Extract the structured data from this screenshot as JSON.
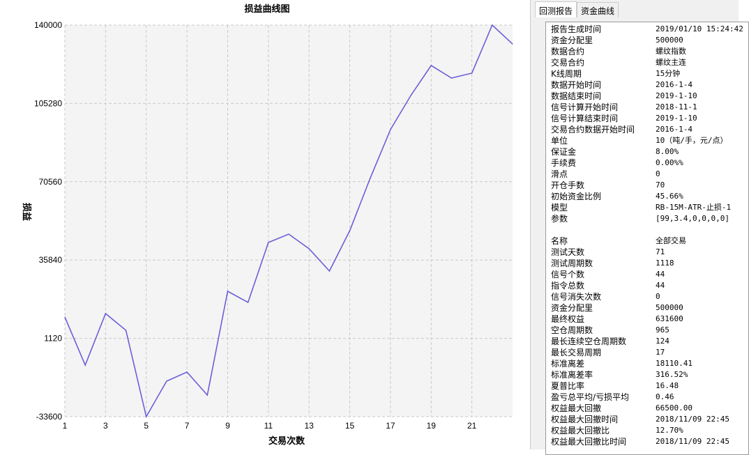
{
  "chart_data": {
    "type": "line",
    "title": "损益曲线图",
    "xlabel": "交易次数",
    "ylabel": "损益",
    "xlim": [
      1,
      23
    ],
    "ylim": [
      -33600,
      140000
    ],
    "xticks": [
      1,
      3,
      5,
      7,
      9,
      11,
      13,
      15,
      17,
      19,
      21
    ],
    "yticks": [
      140000,
      105280,
      70560,
      35840,
      1120,
      -33600
    ],
    "grid": true,
    "line_color": "#6a5fd8",
    "plot_bg": "#f4f4f4",
    "x": [
      1,
      2,
      3,
      4,
      5,
      6,
      7,
      8,
      9,
      10,
      11,
      12,
      13,
      14,
      15,
      16,
      17,
      18,
      19,
      20,
      21,
      22,
      23
    ],
    "y": [
      10570,
      -10740,
      12120,
      4700,
      -33600,
      -17850,
      -13830,
      -24030,
      22000,
      17060,
      43620,
      47330,
      40840,
      30960,
      48870,
      72040,
      93670,
      108800,
      122080,
      116520,
      118690,
      140000,
      131600
    ]
  },
  "panel": {
    "tabs": [
      {
        "label": "回测报告",
        "active": true
      },
      {
        "label": "资金曲线",
        "active": false
      }
    ],
    "section1": [
      [
        "报告生成时间",
        "2019/01/10 15:24:42"
      ],
      [
        "资金分配里",
        "500000"
      ],
      [
        "数据合约",
        "螺纹指数"
      ],
      [
        "交易合约",
        "螺纹主连"
      ],
      [
        "K线周期",
        "15分钟"
      ],
      [
        "数据开始时间",
        "2016-1-4"
      ],
      [
        "数据结束时间",
        "2019-1-10"
      ],
      [
        "信号计算开始时间",
        "2018-11-1"
      ],
      [
        "信号计算结束时间",
        "2019-1-10"
      ],
      [
        "交易合约数据开始时间",
        "2016-1-4"
      ],
      [
        "单位",
        "10（吨/手，元/点）"
      ],
      [
        "保证金",
        "8.00%"
      ],
      [
        "手续费",
        "0.00%%"
      ],
      [
        "滑点",
        "0"
      ],
      [
        "开仓手数",
        "70"
      ],
      [
        "初始资金比例",
        "45.66%"
      ],
      [
        "模型",
        "RB-15M-ATR-止损-1"
      ],
      [
        "参数",
        "[99,3.4,0,0,0,0]"
      ]
    ],
    "section2": [
      [
        "名称",
        "全部交易"
      ],
      [
        "测试天数",
        "71"
      ],
      [
        "测试周期数",
        "1118"
      ],
      [
        "信号个数",
        "44"
      ],
      [
        "指令总数",
        "44"
      ],
      [
        "信号消失次数",
        "0"
      ],
      [
        "资金分配里",
        "500000"
      ],
      [
        "最终权益",
        "631600"
      ],
      [
        "空仓周期数",
        "965"
      ],
      [
        "最长连续空仓周期数",
        "124"
      ],
      [
        "最长交易周期",
        "17"
      ],
      [
        "标准离差",
        "18110.41"
      ],
      [
        "标准离差率",
        "316.52%"
      ],
      [
        "夏普比率",
        "16.48"
      ],
      [
        "盈亏总平均/亏损平均",
        "0.46"
      ],
      [
        "权益最大回撤",
        "66500.00"
      ],
      [
        "权益最大回撤时间",
        "2018/11/09 22:45"
      ],
      [
        "权益最大回撤比",
        "12.70%"
      ],
      [
        "权益最大回撤比时间",
        "2018/11/09 22:45"
      ]
    ]
  }
}
